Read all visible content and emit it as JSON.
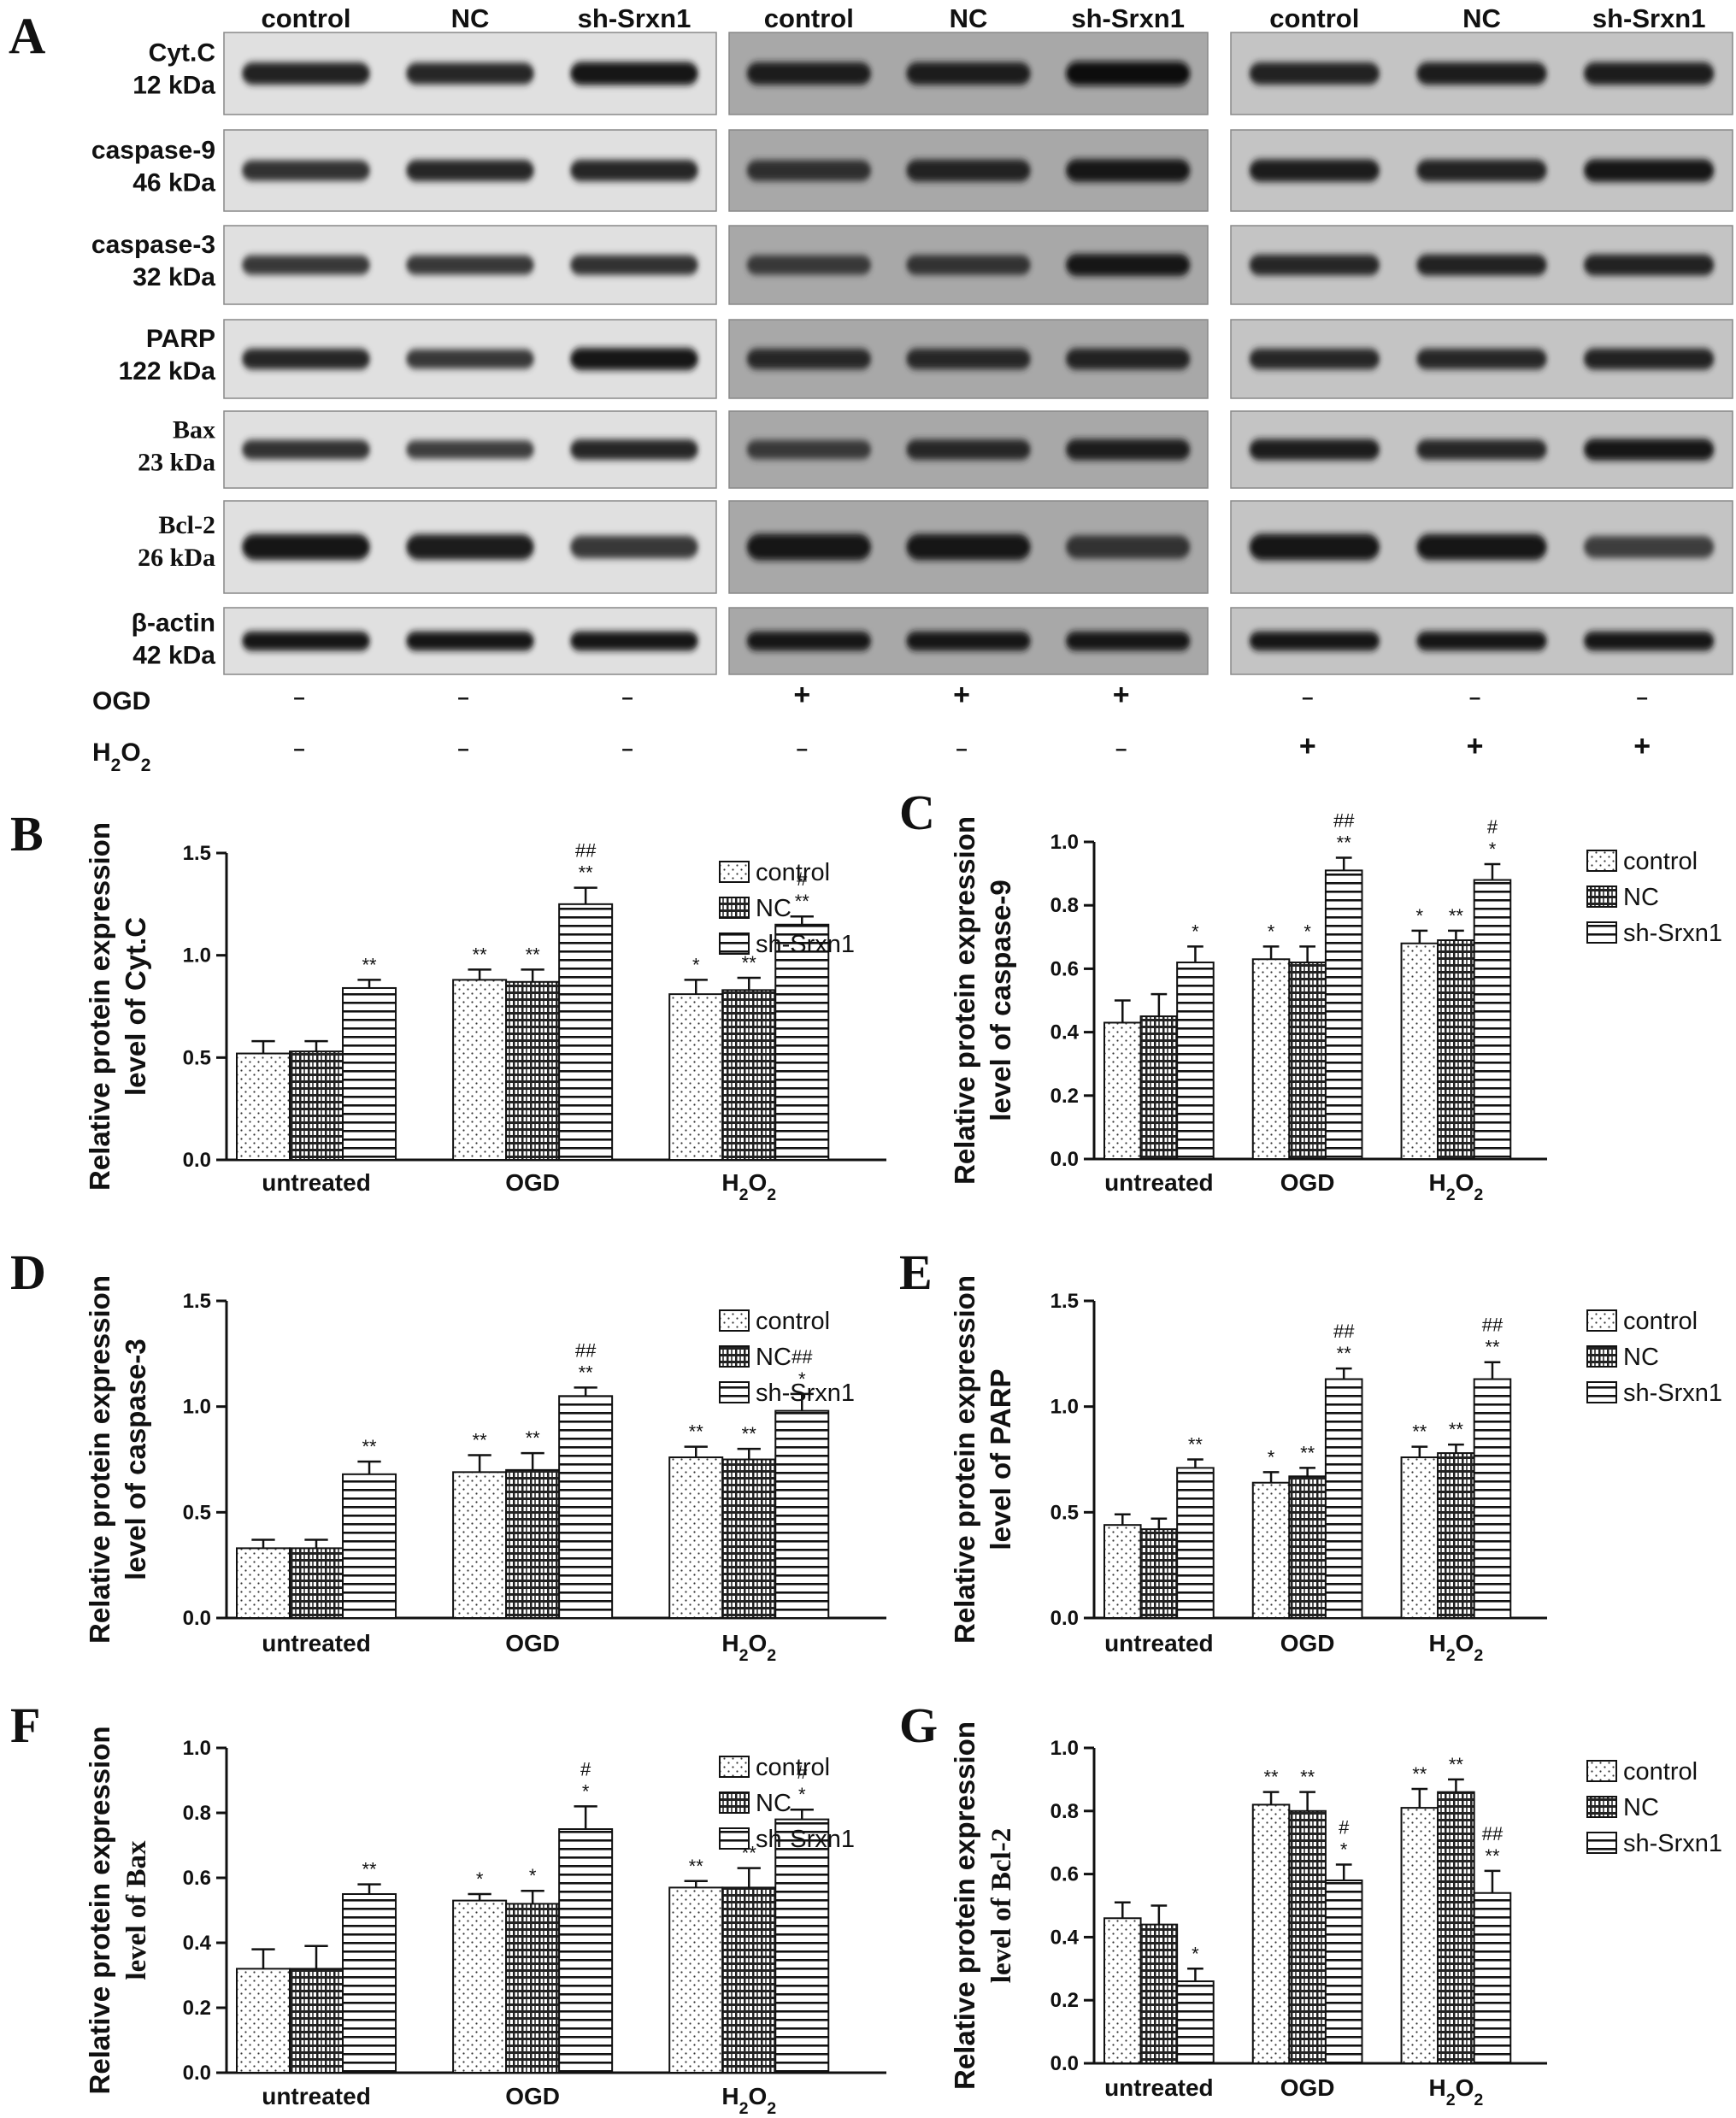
{
  "blot": {
    "panel_label": "A",
    "group_headers": [
      "control",
      "NC",
      "sh-Srxn1"
    ],
    "rows": [
      {
        "name": "Cyt.C",
        "size": "12 kDa",
        "serif": false
      },
      {
        "name": "caspase-9",
        "size": "46 kDa",
        "serif": false
      },
      {
        "name": "caspase-3",
        "size": "32 kDa",
        "serif": false
      },
      {
        "name": "PARP",
        "size": "122 kDa",
        "serif": false
      },
      {
        "name": "Bax",
        "size": "23 kDa",
        "serif": true
      },
      {
        "name": "Bcl-2",
        "size": "26 kDa",
        "serif": true
      },
      {
        "name": "β-actin",
        "size": "42 kDa",
        "serif": false
      }
    ],
    "treatments": {
      "ogd_label": "OGD",
      "h2o2_label": "H2O2",
      "ogd": [
        "–",
        "–",
        "–",
        "+",
        "+",
        "+",
        "–",
        "–",
        "–"
      ],
      "h2o2": [
        "–",
        "–",
        "–",
        "–",
        "–",
        "–",
        "+",
        "+",
        "+"
      ]
    }
  },
  "legend_labels": [
    "control",
    "NC",
    "sh-Srxn1"
  ],
  "chart_data": [
    {
      "panel": "B",
      "type": "bar",
      "categories": [
        "untreated",
        "OGD",
        "H2O2"
      ],
      "ylabel_line1": "Relative protein expression",
      "ylabel_line2": "level of Cyt.C",
      "ylim": [
        0,
        1.5
      ],
      "yticks": [
        "0.0",
        "0.5",
        "1.0",
        "1.5"
      ],
      "series": [
        {
          "name": "control",
          "values": [
            0.52,
            0.88,
            0.81
          ],
          "errors": [
            0.06,
            0.05,
            0.07
          ],
          "sig": [
            "",
            "**",
            "*"
          ]
        },
        {
          "name": "NC",
          "values": [
            0.53,
            0.87,
            0.83
          ],
          "errors": [
            0.05,
            0.06,
            0.06
          ],
          "sig": [
            "",
            "**",
            "**"
          ]
        },
        {
          "name": "sh-Srxn1",
          "values": [
            0.84,
            1.25,
            1.15
          ],
          "errors": [
            0.04,
            0.08,
            0.04
          ],
          "sig": [
            "**",
            "## **",
            "# **"
          ]
        }
      ]
    },
    {
      "panel": "C",
      "type": "bar",
      "categories": [
        "untreated",
        "OGD",
        "H2O2"
      ],
      "ylabel_line1": "Relative protein expression",
      "ylabel_line2": "level of caspase-9",
      "ylim": [
        0,
        1.0
      ],
      "yticks": [
        "0.0",
        "0.2",
        "0.4",
        "0.6",
        "0.8",
        "1.0"
      ],
      "series": [
        {
          "name": "control",
          "values": [
            0.43,
            0.63,
            0.68
          ],
          "errors": [
            0.07,
            0.04,
            0.04
          ],
          "sig": [
            "",
            "*",
            "*"
          ]
        },
        {
          "name": "NC",
          "values": [
            0.45,
            0.62,
            0.69
          ],
          "errors": [
            0.07,
            0.05,
            0.03
          ],
          "sig": [
            "",
            "*",
            "**"
          ]
        },
        {
          "name": "sh-Srxn1",
          "values": [
            0.62,
            0.91,
            0.88
          ],
          "errors": [
            0.05,
            0.04,
            0.05
          ],
          "sig": [
            "*",
            "## **",
            "# *"
          ]
        }
      ]
    },
    {
      "panel": "D",
      "type": "bar",
      "categories": [
        "untreated",
        "OGD",
        "H2O2"
      ],
      "ylabel_line1": "Relative protein expression",
      "ylabel_line2": "level of caspase-3",
      "ylim": [
        0,
        1.5
      ],
      "yticks": [
        "0.0",
        "0.5",
        "1.0",
        "1.5"
      ],
      "series": [
        {
          "name": "control",
          "values": [
            0.33,
            0.69,
            0.76
          ],
          "errors": [
            0.04,
            0.08,
            0.05
          ],
          "sig": [
            "",
            "**",
            "**"
          ]
        },
        {
          "name": "NC",
          "values": [
            0.33,
            0.7,
            0.75
          ],
          "errors": [
            0.04,
            0.08,
            0.05
          ],
          "sig": [
            "",
            "**",
            "**"
          ]
        },
        {
          "name": "sh-Srxn1",
          "values": [
            0.68,
            1.05,
            0.98
          ],
          "errors": [
            0.06,
            0.04,
            0.08
          ],
          "sig": [
            "**",
            "## **",
            "## *"
          ]
        }
      ]
    },
    {
      "panel": "E",
      "type": "bar",
      "categories": [
        "untreated",
        "OGD",
        "H2O2"
      ],
      "ylabel_line1": "Relative protein expression",
      "ylabel_line2": "level of PARP",
      "ylim": [
        0,
        1.5
      ],
      "yticks": [
        "0.0",
        "0.5",
        "1.0",
        "1.5"
      ],
      "series": [
        {
          "name": "control",
          "values": [
            0.44,
            0.64,
            0.76
          ],
          "errors": [
            0.05,
            0.05,
            0.05
          ],
          "sig": [
            "",
            "*",
            "**"
          ]
        },
        {
          "name": "NC",
          "values": [
            0.42,
            0.67,
            0.78
          ],
          "errors": [
            0.05,
            0.04,
            0.04
          ],
          "sig": [
            "",
            "**",
            "**"
          ]
        },
        {
          "name": "sh-Srxn1",
          "values": [
            0.71,
            1.13,
            1.13
          ],
          "errors": [
            0.04,
            0.05,
            0.08
          ],
          "sig": [
            "**",
            "## **",
            "## **"
          ]
        }
      ]
    },
    {
      "panel": "F",
      "type": "bar",
      "categories": [
        "untreated",
        "OGD",
        "H2O2"
      ],
      "ylabel_line1": "Relative protein expression",
      "ylabel_line2": "level of Bax",
      "ylabel_serif": true,
      "ylim": [
        0,
        1.0
      ],
      "yticks": [
        "0.0",
        "0.2",
        "0.4",
        "0.6",
        "0.8",
        "1.0"
      ],
      "series": [
        {
          "name": "control",
          "values": [
            0.32,
            0.53,
            0.57
          ],
          "errors": [
            0.06,
            0.02,
            0.02
          ],
          "sig": [
            "",
            "*",
            "**"
          ]
        },
        {
          "name": "NC",
          "values": [
            0.32,
            0.52,
            0.57
          ],
          "errors": [
            0.07,
            0.04,
            0.06
          ],
          "sig": [
            "",
            "*",
            "**"
          ]
        },
        {
          "name": "sh-Srxn1",
          "values": [
            0.55,
            0.75,
            0.78
          ],
          "errors": [
            0.03,
            0.07,
            0.03
          ],
          "sig": [
            "**",
            "# *",
            "# *"
          ]
        }
      ]
    },
    {
      "panel": "G",
      "type": "bar",
      "categories": [
        "untreated",
        "OGD",
        "H2O2"
      ],
      "ylabel_line1": "Relative protein expression",
      "ylabel_line2": "level of Bcl-2",
      "ylabel_serif": true,
      "ylim": [
        0,
        1.0
      ],
      "yticks": [
        "0.0",
        "0.2",
        "0.4",
        "0.6",
        "0.8",
        "1.0"
      ],
      "series": [
        {
          "name": "control",
          "values": [
            0.46,
            0.82,
            0.81
          ],
          "errors": [
            0.05,
            0.04,
            0.06
          ],
          "sig": [
            "",
            "**",
            "**"
          ]
        },
        {
          "name": "NC",
          "values": [
            0.44,
            0.8,
            0.86
          ],
          "errors": [
            0.06,
            0.06,
            0.04
          ],
          "sig": [
            "",
            "**",
            "**"
          ]
        },
        {
          "name": "sh-Srxn1",
          "values": [
            0.26,
            0.58,
            0.54
          ],
          "errors": [
            0.04,
            0.05,
            0.07
          ],
          "sig": [
            "*",
            "# *",
            "## **"
          ]
        }
      ]
    }
  ]
}
